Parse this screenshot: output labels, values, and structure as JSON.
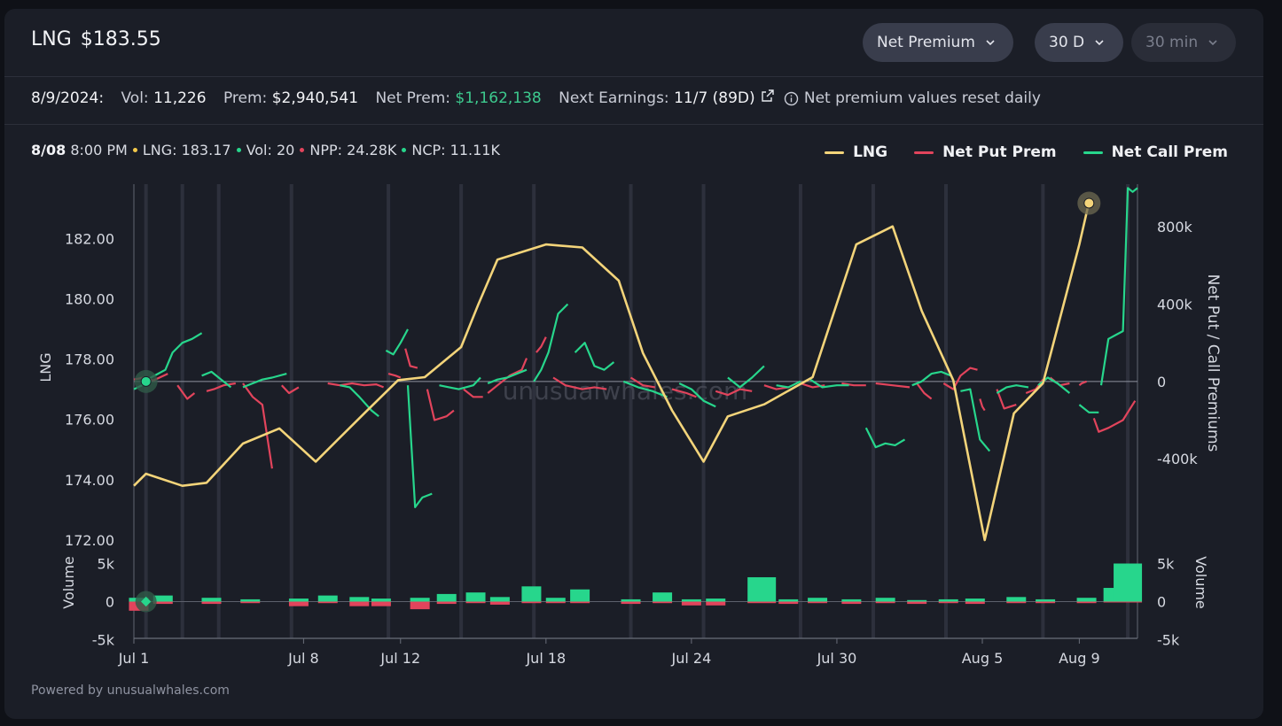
{
  "header": {
    "symbol": "LNG",
    "price": "$183.55",
    "dropdowns": [
      {
        "label": "Net Premium"
      },
      {
        "label": "30 D"
      },
      {
        "label": "30 min"
      }
    ]
  },
  "stats": {
    "date": "8/9/2024:",
    "vol_label": "Vol:",
    "vol_value": "11,226",
    "prem_label": "Prem:",
    "prem_value": "$2,940,541",
    "net_prem_label": "Net Prem:",
    "net_prem_value": "$1,162,138",
    "earnings_label": "Next Earnings:",
    "earnings_value": "11/7 (89D)",
    "info_text": "Net premium values reset daily"
  },
  "hover": {
    "date": "8/08",
    "time": "8:00 PM",
    "lng": "LNG: 183.17",
    "vol": "Vol: 20",
    "npp": "NPP: 24.28K",
    "ncp": "NCP: 11.11K"
  },
  "colors": {
    "lng": "#f3d47a",
    "put": "#e2445c",
    "call": "#27d68c",
    "grid": "#3a3d48"
  },
  "watermark": "unusualwhales.com",
  "footer": "Powered by unusualwhales.com",
  "chart_data": {
    "type": "line",
    "title": "",
    "legend": [
      "LNG",
      "Net Put Prem",
      "Net Call Prem"
    ],
    "legend_position": "top-right",
    "x_ticks": [
      "Jul 1",
      "Jul 8",
      "Jul 12",
      "Jul 18",
      "Jul 24",
      "Jul 30",
      "Aug 5",
      "Aug 9"
    ],
    "x_tick_days": [
      0,
      7,
      11,
      17,
      23,
      29,
      35,
      39
    ],
    "x_range": [
      0,
      41.4
    ],
    "y_left": {
      "label": "LNG",
      "ticks": [
        "182.00",
        "180.00",
        "178.00",
        "176.00",
        "174.00",
        "172.00"
      ],
      "range": [
        172,
        183.8
      ]
    },
    "y_right": {
      "label": "Net Put / Call Premiums",
      "ticks": [
        "800k",
        "400k",
        "0",
        "-400k"
      ],
      "range": [
        -820,
        1020
      ]
    },
    "volume": {
      "left_label": "Volume",
      "right_label": "Volume",
      "ticks": [
        "5k",
        "0",
        "-5k"
      ],
      "range": [
        -5,
        5
      ]
    },
    "closed_day_markers": [
      0.5,
      2,
      3.5,
      6.5,
      10.5,
      13.5,
      16.5,
      20.5,
      23.5,
      27.5,
      30.5,
      33.5,
      37.5,
      41
    ],
    "weekend_days": [
      6,
      7,
      13,
      14,
      20,
      21,
      27,
      28,
      34,
      35,
      41
    ],
    "series": [
      {
        "name": "LNG",
        "x": [
          0,
          0.5,
          2,
          3,
          4.5,
          6,
          7.5,
          9.5,
          10.9,
          12,
          13.5,
          14.2,
          15,
          17,
          18.5,
          20,
          21,
          22.2,
          23.5,
          24.5,
          26,
          28,
          29.8,
          31.3,
          32.5,
          33.8,
          35.1,
          36.3,
          37.5,
          39,
          39.4
        ],
        "y": [
          173.8,
          174.2,
          173.8,
          173.9,
          175.2,
          175.7,
          174.6,
          176.2,
          177.3,
          177.4,
          178.4,
          179.8,
          181.3,
          181.8,
          181.7,
          180.6,
          178.2,
          176.3,
          174.6,
          176.1,
          176.5,
          177.4,
          181.8,
          182.4,
          179.6,
          177.3,
          172.0,
          176.2,
          177.2,
          181.8,
          183.2
        ]
      },
      {
        "name": "Net Put Prem",
        "segments": [
          {
            "x": [
              0,
              0.4,
              0.8,
              1.4
            ],
            "y": [
              10,
              20,
              5,
              40
            ]
          },
          {
            "x": [
              1.8,
              2.2,
              2.5
            ],
            "y": [
              -20,
              -90,
              -60
            ]
          },
          {
            "x": [
              3,
              3.3,
              3.7,
              4.2
            ],
            "y": [
              -50,
              -40,
              -20,
              -10
            ]
          },
          {
            "x": [
              4.5,
              4.9,
              5.3,
              5.7
            ],
            "y": [
              -10,
              -80,
              -120,
              -450
            ]
          },
          {
            "x": [
              6.1,
              6.4,
              6.8
            ],
            "y": [
              -20,
              -60,
              -30
            ]
          },
          {
            "x": [
              8,
              8.5,
              9,
              9.5,
              10,
              10.3
            ],
            "y": [
              -10,
              -20,
              -10,
              -20,
              -15,
              -30
            ]
          },
          {
            "x": [
              10.5,
              10.8,
              11
            ],
            "y": [
              40,
              30,
              20
            ]
          },
          {
            "x": [
              11.2,
              11.4,
              11.7
            ],
            "y": [
              170,
              80,
              70
            ]
          },
          {
            "x": [
              12.1,
              12.4,
              12.9,
              13.2
            ],
            "y": [
              -40,
              -200,
              -180,
              -150
            ]
          },
          {
            "x": [
              13.6,
              14.0,
              14.4
            ],
            "y": [
              -40,
              -80,
              -80
            ]
          },
          {
            "x": [
              14.6,
              15.0,
              15.5,
              16.0,
              16.2
            ],
            "y": [
              -60,
              -20,
              30,
              60,
              120
            ]
          },
          {
            "x": [
              16.6,
              16.8,
              17.0
            ],
            "y": [
              150,
              180,
              230
            ]
          },
          {
            "x": [
              17.3,
              17.8,
              18.5,
              19.0,
              19.5
            ],
            "y": [
              20,
              -20,
              -40,
              -30,
              -40
            ]
          },
          {
            "x": [
              20.5,
              21.0,
              21.5
            ],
            "y": [
              20,
              -20,
              -30
            ]
          },
          {
            "x": [
              22.2,
              22.8,
              23.2
            ],
            "y": [
              -40,
              -60,
              -80
            ]
          },
          {
            "x": [
              24,
              24.5,
              25.0,
              25.5
            ],
            "y": [
              -50,
              -70,
              -40,
              -50
            ]
          },
          {
            "x": [
              26,
              26.5,
              27
            ],
            "y": [
              -20,
              -40,
              -30
            ]
          },
          {
            "x": [
              27.5,
              28.0,
              28.5
            ],
            "y": [
              -10,
              -30,
              -20
            ]
          },
          {
            "x": [
              29.2,
              29.7,
              30.2
            ],
            "y": [
              -10,
              -20,
              -20
            ]
          },
          {
            "x": [
              30.6,
              31.3,
              32.0
            ],
            "y": [
              -10,
              -20,
              -30
            ]
          },
          {
            "x": [
              32.3,
              32.6,
              32.9
            ],
            "y": [
              -10,
              -60,
              -90
            ]
          },
          {
            "x": [
              33.4,
              33.8,
              34.1,
              34.5,
              34.8
            ],
            "y": [
              -10,
              -40,
              30,
              70,
              60
            ]
          },
          {
            "x": [
              34.9,
              35.0,
              35.1
            ],
            "y": [
              -90,
              -130,
              -150
            ]
          },
          {
            "x": [
              35.6,
              35.9,
              36.4
            ],
            "y": [
              -40,
              -140,
              -120
            ]
          },
          {
            "x": [
              36.8,
              37.2,
              37.5
            ],
            "y": [
              -60,
              -40,
              10
            ]
          },
          {
            "x": [
              37.8,
              38.2,
              38.6
            ],
            "y": [
              20,
              -20,
              -10
            ]
          },
          {
            "x": [
              39,
              39.1,
              39.3
            ],
            "y": [
              -20,
              -10,
              0
            ]
          },
          {
            "x": [
              39.6,
              39.8,
              40.2,
              40.8,
              41.3
            ],
            "y": [
              -190,
              -260,
              -240,
              -200,
              -100
            ]
          }
        ]
      },
      {
        "name": "Net Call Prem",
        "segments": [
          {
            "x": [
              0,
              0.5,
              0.7,
              1.0,
              1.3,
              1.6,
              2.0,
              2.4,
              2.8
            ],
            "y": [
              -40,
              -10,
              20,
              40,
              60,
              150,
              200,
              220,
              250
            ]
          },
          {
            "x": [
              2.8,
              3.2,
              3.6,
              4.0
            ],
            "y": [
              30,
              50,
              10,
              -30
            ]
          },
          {
            "x": [
              4.5,
              4.9,
              5.3,
              5.7,
              6.3
            ],
            "y": [
              -30,
              -10,
              10,
              20,
              40
            ]
          },
          {
            "x": [
              8.5,
              8.9,
              9.3,
              9.8,
              10.1
            ],
            "y": [
              -20,
              -30,
              -80,
              -150,
              -180
            ]
          },
          {
            "x": [
              10.4,
              10.7,
              11.0,
              11.3
            ],
            "y": [
              160,
              140,
              200,
              270
            ]
          },
          {
            "x": [
              11.3,
              11.6,
              11.9,
              12.3
            ],
            "y": [
              -20,
              -650,
              -600,
              -580
            ]
          },
          {
            "x": [
              12.6,
              13.0,
              13.4,
              14.0,
              14.3
            ],
            "y": [
              -20,
              -30,
              -40,
              -20,
              20
            ]
          },
          {
            "x": [
              14.6,
              15.0,
              15.4,
              15.8,
              16.2
            ],
            "y": [
              -10,
              10,
              20,
              40,
              60
            ]
          },
          {
            "x": [
              16.5,
              16.8,
              17.1,
              17.5,
              17.9
            ],
            "y": [
              0,
              60,
              150,
              350,
              400
            ]
          },
          {
            "x": [
              18.2,
              18.6,
              19.0,
              19.4,
              19.8
            ],
            "y": [
              150,
              200,
              80,
              60,
              100
            ]
          },
          {
            "x": [
              20.2,
              20.8,
              21.4,
              22.0
            ],
            "y": [
              0,
              -30,
              -50,
              -80
            ]
          },
          {
            "x": [
              22.5,
              23.0,
              23.5,
              24.0
            ],
            "y": [
              -10,
              -40,
              -100,
              -130
            ]
          },
          {
            "x": [
              24.5,
              25.0,
              25.5,
              26.0
            ],
            "y": [
              20,
              -30,
              20,
              80
            ]
          },
          {
            "x": [
              26.5,
              27.0,
              27.5
            ],
            "y": [
              -20,
              -30,
              0
            ]
          },
          {
            "x": [
              27.9,
              28.4,
              29.0,
              29.5
            ],
            "y": [
              10,
              -30,
              -20,
              -20
            ]
          },
          {
            "x": [
              30.2,
              30.6,
              31.0,
              31.4,
              31.8
            ],
            "y": [
              -240,
              -340,
              -320,
              -330,
              -300
            ]
          },
          {
            "x": [
              32.1,
              32.5,
              32.9,
              33.3,
              33.7
            ],
            "y": [
              -20,
              0,
              40,
              50,
              30
            ]
          },
          {
            "x": [
              34.1,
              34.5,
              34.9,
              35.3
            ],
            "y": [
              -50,
              -40,
              -300,
              -360
            ]
          },
          {
            "x": [
              35.6,
              36.0,
              36.4,
              36.9
            ],
            "y": [
              -60,
              -30,
              -20,
              -30
            ]
          },
          {
            "x": [
              37.3,
              37.7,
              38.1,
              38.6
            ],
            "y": [
              -20,
              20,
              -10,
              -60
            ]
          },
          {
            "x": [
              39.0,
              39.4,
              39.8
            ],
            "y": [
              -120,
              -160,
              -160
            ]
          },
          {
            "x": [
              39.9,
              40.2,
              40.5,
              40.8,
              41.0,
              41.2,
              41.4
            ],
            "y": [
              -20,
              220,
              240,
              260,
              1000,
              980,
              1000
            ]
          }
        ]
      }
    ],
    "volume_bars": [
      {
        "x": 0.2,
        "call": 0.5,
        "put": 1.2
      },
      {
        "x": 1.2,
        "call": 0.8,
        "put": 0.3
      },
      {
        "x": 3.2,
        "call": 0.5,
        "put": 0.3
      },
      {
        "x": 4.8,
        "call": 0.3,
        "put": 0.2
      },
      {
        "x": 6.8,
        "call": 0.4,
        "put": 0.6
      },
      {
        "x": 8.0,
        "call": 0.8,
        "put": 0.2
      },
      {
        "x": 9.3,
        "call": 0.6,
        "put": 0.6
      },
      {
        "x": 10.2,
        "call": 0.4,
        "put": 0.6
      },
      {
        "x": 11.8,
        "call": 0.5,
        "put": 1.0
      },
      {
        "x": 12.9,
        "call": 1.0,
        "put": 0.3
      },
      {
        "x": 14.1,
        "call": 1.2,
        "put": 0.2
      },
      {
        "x": 15.1,
        "call": 0.6,
        "put": 0.4
      },
      {
        "x": 16.4,
        "call": 2.0,
        "put": 0.2
      },
      {
        "x": 17.4,
        "call": 0.5,
        "put": 0.2
      },
      {
        "x": 18.4,
        "call": 1.6,
        "put": 0.2
      },
      {
        "x": 20.5,
        "call": 0.3,
        "put": 0.3
      },
      {
        "x": 21.8,
        "call": 1.2,
        "put": 0.2
      },
      {
        "x": 23.0,
        "call": 0.3,
        "put": 0.5
      },
      {
        "x": 24.0,
        "call": 0.4,
        "put": 0.5
      },
      {
        "x": 25.9,
        "call": 3.2,
        "put": 0.2
      },
      {
        "x": 27.0,
        "call": 0.3,
        "put": 0.3
      },
      {
        "x": 28.2,
        "call": 0.5,
        "put": 0.2
      },
      {
        "x": 29.6,
        "call": 0.3,
        "put": 0.3
      },
      {
        "x": 31.0,
        "call": 0.5,
        "put": 0.2
      },
      {
        "x": 32.3,
        "call": 0.2,
        "put": 0.3
      },
      {
        "x": 33.6,
        "call": 0.3,
        "put": 0.2
      },
      {
        "x": 34.7,
        "call": 0.4,
        "put": 0.3
      },
      {
        "x": 36.4,
        "call": 0.6,
        "put": 0.2
      },
      {
        "x": 37.6,
        "call": 0.3,
        "put": 0.2
      },
      {
        "x": 39.3,
        "call": 0.5,
        "put": 0.2
      },
      {
        "x": 40.4,
        "call": 1.8,
        "put": 0.1
      },
      {
        "x": 41.0,
        "call": 5.0,
        "put": 0.1
      }
    ],
    "hover_point": {
      "x": 39.4,
      "lng": 183.17
    }
  }
}
